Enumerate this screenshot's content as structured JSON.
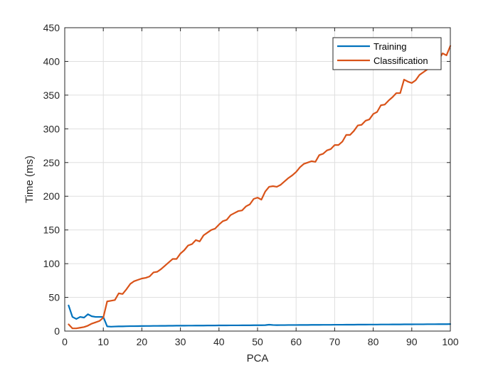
{
  "chart_data": {
    "type": "line",
    "xlabel": "PCA",
    "ylabel": "Time (ms)",
    "xlim": [
      0,
      100
    ],
    "ylim": [
      0,
      450
    ],
    "xticks": [
      0,
      10,
      20,
      30,
      40,
      50,
      60,
      70,
      80,
      90,
      100
    ],
    "yticks": [
      0,
      50,
      100,
      150,
      200,
      250,
      300,
      350,
      400,
      450
    ],
    "grid": true,
    "legend_position": "top-right",
    "series": [
      {
        "name": "Training",
        "color": "#0072BD",
        "x": [
          1,
          2,
          3,
          4,
          5,
          6,
          7,
          8,
          9,
          10,
          11,
          12,
          13,
          14,
          15,
          16,
          17,
          18,
          19,
          20,
          21,
          22,
          23,
          24,
          25,
          26,
          27,
          28,
          29,
          30,
          31,
          32,
          33,
          34,
          35,
          36,
          37,
          38,
          39,
          40,
          41,
          42,
          43,
          44,
          45,
          46,
          47,
          48,
          49,
          50,
          51,
          52,
          53,
          54,
          55,
          56,
          57,
          58,
          59,
          60,
          61,
          62,
          63,
          64,
          65,
          66,
          67,
          68,
          69,
          70,
          71,
          72,
          73,
          74,
          75,
          76,
          77,
          78,
          79,
          80,
          81,
          82,
          83,
          84,
          85,
          86,
          87,
          88,
          89,
          90,
          91,
          92,
          93,
          94,
          95,
          96,
          97,
          98,
          99,
          100
        ],
        "y": [
          38,
          21,
          18,
          21,
          20,
          25,
          22,
          21,
          21,
          21,
          7,
          6.5,
          6.8,
          7,
          7,
          7.2,
          7.3,
          7.3,
          7.4,
          7.5,
          7.6,
          7.6,
          7.7,
          7.7,
          7.8,
          7.8,
          7.9,
          7.9,
          8,
          8,
          8,
          8.1,
          8.1,
          8.2,
          8.2,
          8.2,
          8.3,
          8.3,
          8.3,
          8.4,
          8.4,
          8.4,
          8.5,
          8.5,
          8.5,
          8.6,
          8.6,
          8.6,
          8.7,
          8.7,
          8.7,
          8.8,
          9.5,
          9,
          8.8,
          8.9,
          8.9,
          9,
          9,
          9,
          9.1,
          9.1,
          9.1,
          9.2,
          9.2,
          9.2,
          9.3,
          9.3,
          9.3,
          9.4,
          9.4,
          9.4,
          9.5,
          9.5,
          9.5,
          9.6,
          9.6,
          9.6,
          9.7,
          9.7,
          9.7,
          9.8,
          9.8,
          9.8,
          9.9,
          9.9,
          9.9,
          10,
          10,
          10,
          10.1,
          10.1,
          10.1,
          10.2,
          10.2,
          10.2,
          10.3,
          10.3,
          10.3,
          10.4
        ]
      },
      {
        "name": "Classification",
        "color": "#D95319",
        "x": [
          1,
          2,
          3,
          4,
          5,
          6,
          7,
          8,
          9,
          10,
          11,
          12,
          13,
          14,
          15,
          16,
          17,
          18,
          19,
          20,
          21,
          22,
          23,
          24,
          25,
          26,
          27,
          28,
          29,
          30,
          31,
          32,
          33,
          34,
          35,
          36,
          37,
          38,
          39,
          40,
          41,
          42,
          43,
          44,
          45,
          46,
          47,
          48,
          49,
          50,
          51,
          52,
          53,
          54,
          55,
          56,
          57,
          58,
          59,
          60,
          61,
          62,
          63,
          64,
          65,
          66,
          67,
          68,
          69,
          70,
          71,
          72,
          73,
          74,
          75,
          76,
          77,
          78,
          79,
          80,
          81,
          82,
          83,
          84,
          85,
          86,
          87,
          88,
          89,
          90,
          91,
          92,
          93,
          94,
          95,
          96,
          97,
          98,
          99,
          100
        ],
        "y": [
          10,
          4,
          4,
          5,
          6,
          8,
          11,
          13,
          15,
          20,
          44,
          45,
          46,
          56,
          55,
          62,
          70,
          74,
          76,
          78,
          79,
          81,
          87,
          88,
          92,
          97,
          102,
          107,
          107,
          115,
          120,
          127,
          129,
          135,
          133,
          142,
          146,
          150,
          152,
          158,
          163,
          165,
          172,
          175,
          178,
          179,
          185,
          188,
          196,
          198,
          195,
          207,
          214,
          215,
          214,
          217,
          222,
          227,
          231,
          236,
          243,
          248,
          250,
          252,
          251,
          261,
          263,
          268,
          270,
          276,
          276,
          281,
          291,
          291,
          297,
          305,
          306,
          312,
          314,
          322,
          325,
          335,
          336,
          342,
          347,
          353,
          353,
          373,
          370,
          368,
          372,
          380,
          384,
          388,
          395,
          400,
          403,
          412,
          409,
          423
        ]
      }
    ]
  }
}
